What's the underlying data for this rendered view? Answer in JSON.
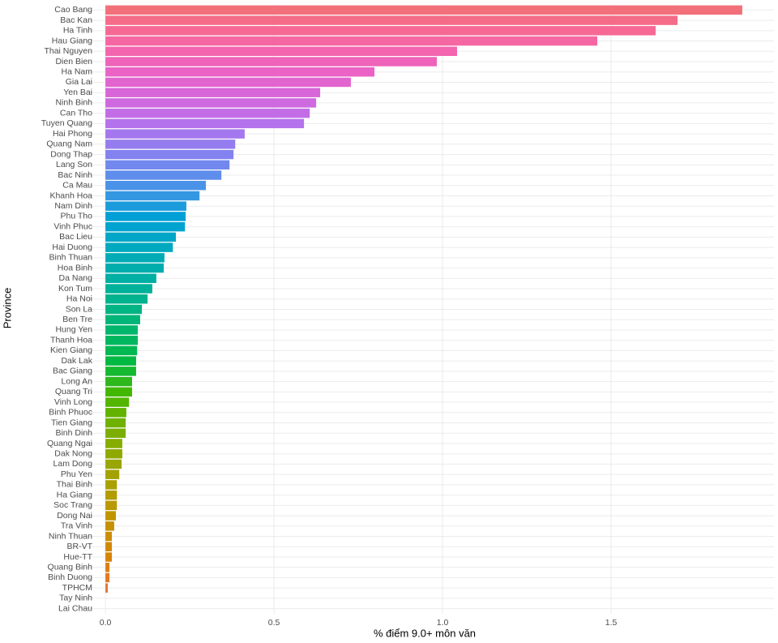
{
  "chart_data": {
    "type": "bar",
    "orientation": "horizontal",
    "x_label": "% điểm 9.0+ môn văn",
    "y_label": "Province",
    "categories": [
      "Cao Bang",
      "Bac Kan",
      "Ha Tinh",
      "Hau Giang",
      "Thai Nguyen",
      "Dien Bien",
      "Ha Nam",
      "Gia Lai",
      "Yen Bai",
      "Ninh Binh",
      "Can Tho",
      "Tuyen Quang",
      "Hai Phong",
      "Quang Nam",
      "Dong Thap",
      "Lang Son",
      "Bac Ninh",
      "Ca Mau",
      "Khanh Hoa",
      "Nam Dinh",
      "Phu Tho",
      "Vinh Phuc",
      "Bac Lieu",
      "Hai Duong",
      "Binh Thuan",
      "Hoa Binh",
      "Da Nang",
      "Kon Tum",
      "Ha Noi",
      "Son La",
      "Ben Tre",
      "Hung Yen",
      "Thanh Hoa",
      "Kien Giang",
      "Dak Lak",
      "Bac Giang",
      "Long An",
      "Quang Tri",
      "Vinh Long",
      "Binh Phuoc",
      "Tien Giang",
      "Binh Dinh",
      "Quang Ngai",
      "Dak Nong",
      "Lam Dong",
      "Phu Yen",
      "Thai Binh",
      "Ha Giang",
      "Soc Trang",
      "Dong Nai",
      "Tra Vinh",
      "Ninh Thuan",
      "BR-VT",
      "Hue-TT",
      "Quang Binh",
      "Binh Duong",
      "TPHCM",
      "Tay Ninh",
      "Lai Chau"
    ],
    "values": [
      1.889,
      1.697,
      1.632,
      1.459,
      1.043,
      0.983,
      0.798,
      0.728,
      0.637,
      0.625,
      0.606,
      0.589,
      0.413,
      0.385,
      0.38,
      0.368,
      0.344,
      0.298,
      0.279,
      0.24,
      0.238,
      0.236,
      0.209,
      0.2,
      0.175,
      0.173,
      0.151,
      0.139,
      0.125,
      0.108,
      0.103,
      0.096,
      0.096,
      0.094,
      0.091,
      0.091,
      0.079,
      0.079,
      0.07,
      0.062,
      0.06,
      0.06,
      0.05,
      0.05,
      0.048,
      0.041,
      0.034,
      0.034,
      0.034,
      0.031,
      0.026,
      0.019,
      0.019,
      0.019,
      0.012,
      0.012,
      0.007,
      0,
      0
    ],
    "colors": [
      "#F2707A",
      "#F56C88",
      "#F66995",
      "#F567A2",
      "#F365AE",
      "#EF64BA",
      "#EA63C5",
      "#E264CF",
      "#D966D8",
      "#CE69E0",
      "#C26DE6",
      "#B472EB",
      "#A577EE",
      "#957DF0",
      "#8482F0",
      "#7288EE",
      "#5F8DEB",
      "#4A92E7",
      "#3497E2",
      "#1C9BDC",
      "#00A0D6",
      "#00A3CF",
      "#00A6C7",
      "#00A9BF",
      "#00ABB6",
      "#00ADAD",
      "#00AFA3",
      "#00B199",
      "#00B28E",
      "#00B483",
      "#00B578",
      "#00B66C",
      "#00B75F",
      "#00B851",
      "#00B942",
      "#14B930",
      "#2DB81C",
      "#42B700",
      "#53B500",
      "#62B300",
      "#6FB100",
      "#7BAE00",
      "#86AC00",
      "#90A900",
      "#99A600",
      "#A2A300",
      "#AAA000",
      "#B29C00",
      "#B99900",
      "#C09500",
      "#C69100",
      "#CC8D00",
      "#D28800",
      "#D78400",
      "#DC7F12",
      "#E07A24",
      "#E47632",
      "#E7723E",
      "#EA6E49"
    ],
    "xlim": [
      -0.094,
      1.983
    ],
    "xticks": [
      {
        "value": 0,
        "label": "0.0"
      },
      0.5,
      {
        "value": 1,
        "label": "1.0"
      },
      1.5
    ],
    "grid": true
  }
}
